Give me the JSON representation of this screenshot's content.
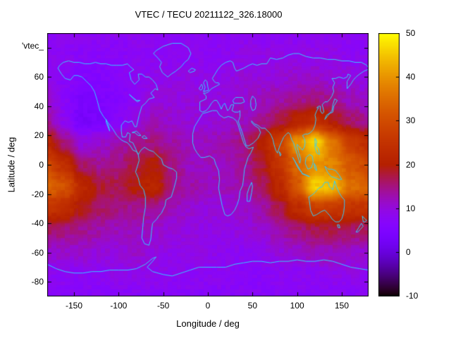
{
  "title": "VTEC / TECU 20211122_326.18000",
  "key_label": "'vtec_",
  "axes": {
    "xlabel": "Longitude / deg",
    "ylabel": "Latitude / deg",
    "x_tick_labels": [
      "-150",
      "-100",
      "-50",
      "0",
      "50",
      "100",
      "150"
    ],
    "x_tick_values": [
      -150,
      -100,
      -50,
      0,
      50,
      100,
      150
    ],
    "y_tick_labels": [
      "60",
      "40",
      "20",
      "0",
      "-20",
      "-40",
      "-60",
      "-80"
    ],
    "y_tick_values": [
      60,
      40,
      20,
      0,
      -20,
      -40,
      -60,
      -80
    ],
    "x_range": [
      -180,
      180
    ],
    "y_range": [
      -90,
      90
    ]
  },
  "colorbar": {
    "tick_labels": [
      "50",
      "40",
      "30",
      "20",
      "10",
      "0",
      "-10"
    ],
    "tick_values": [
      50,
      40,
      30,
      20,
      10,
      0,
      -10
    ],
    "range": [
      -10,
      50
    ]
  },
  "colors": {
    "coastline": "#33ccff",
    "frame": "#000000",
    "background": "#ffffff"
  },
  "chart_data": {
    "type": "heatmap",
    "title": "VTEC / TECU 20211122_326.18000",
    "xlabel": "Longitude / deg",
    "ylabel": "Latitude / deg",
    "zlim": [
      -10,
      50
    ],
    "colormap": "gnuplot pm3d rgbformulae 7,5,15 (black-purple-violet-red-orange-yellow)",
    "overlay": "world coastlines drawn in cyan",
    "x_lon": [
      -180,
      -160,
      -140,
      -120,
      -100,
      -80,
      -60,
      -40,
      -20,
      0,
      20,
      40,
      60,
      80,
      100,
      120,
      140,
      160,
      180
    ],
    "y_lat": [
      90,
      75,
      60,
      45,
      30,
      15,
      0,
      -15,
      -30,
      -45,
      -60,
      -75,
      -90
    ],
    "values_tecu": [
      [
        8,
        8,
        8,
        8,
        8,
        8,
        8,
        8,
        8,
        8,
        8,
        8,
        8,
        8,
        8,
        8,
        8,
        8,
        8
      ],
      [
        8,
        8,
        7,
        7,
        7,
        8,
        8,
        8,
        8,
        8,
        8,
        9,
        9,
        9,
        9,
        9,
        9,
        8,
        8
      ],
      [
        9,
        7,
        6,
        6,
        7,
        8,
        9,
        9,
        9,
        9,
        9,
        10,
        10,
        10,
        11,
        11,
        10,
        10,
        9
      ],
      [
        11,
        7,
        4,
        5,
        6,
        8,
        10,
        10,
        10,
        10,
        10,
        11,
        12,
        13,
        14,
        15,
        14,
        12,
        11
      ],
      [
        14,
        8,
        3,
        4,
        7,
        10,
        12,
        11,
        10,
        10,
        11,
        12,
        14,
        17,
        21,
        24,
        20,
        16,
        14
      ],
      [
        22,
        15,
        10,
        11,
        13,
        15,
        15,
        13,
        12,
        12,
        13,
        15,
        20,
        28,
        40,
        47,
        36,
        27,
        23
      ],
      [
        29,
        24,
        16,
        14,
        15,
        18,
        20,
        15,
        12,
        12,
        12,
        14,
        18,
        25,
        34,
        40,
        38,
        32,
        29
      ],
      [
        34,
        31,
        22,
        18,
        17,
        20,
        22,
        15,
        13,
        12,
        12,
        13,
        16,
        22,
        32,
        46,
        44,
        35,
        34
      ],
      [
        25,
        23,
        19,
        16,
        15,
        14,
        14,
        12,
        11,
        10,
        10,
        11,
        13,
        17,
        23,
        27,
        26,
        25,
        25
      ],
      [
        16,
        15,
        14,
        13,
        12,
        12,
        11,
        10,
        10,
        9,
        9,
        10,
        11,
        13,
        15,
        17,
        17,
        16,
        16
      ],
      [
        11,
        11,
        11,
        10,
        10,
        11,
        10,
        9,
        9,
        9,
        8,
        8,
        9,
        10,
        11,
        12,
        12,
        11,
        11
      ],
      [
        8,
        8,
        8,
        8,
        9,
        9,
        9,
        8,
        8,
        8,
        8,
        7,
        7,
        8,
        8,
        8,
        9,
        9,
        8
      ],
      [
        7,
        7,
        7,
        7,
        7,
        7,
        7,
        7,
        7,
        7,
        7,
        7,
        7,
        7,
        7,
        7,
        7,
        7,
        7
      ]
    ]
  }
}
